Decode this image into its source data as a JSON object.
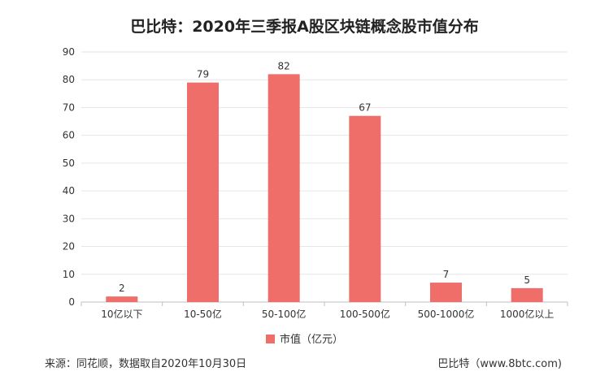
{
  "title": "巴比特：2020年三季报A股区块链概念股市值分布",
  "legend_label": "市值（亿元）",
  "footer": {
    "source": "来源：同花顺，数据取自2020年10月30日",
    "brand": "巴比特（www.8btc.com)"
  },
  "colors": {
    "bar": "#ef6e69",
    "grid": "#e6e6e6",
    "axis": "#bfbfbf"
  },
  "chart_data": {
    "type": "bar",
    "categories": [
      "10亿以下",
      "10-50亿",
      "50-100亿",
      "100-500亿",
      "500-1000亿",
      "1000亿以上"
    ],
    "series": [
      {
        "name": "市值（亿元）",
        "values": [
          2,
          79,
          82,
          67,
          7,
          5
        ]
      }
    ],
    "ylim": [
      0,
      90
    ],
    "yticks": [
      0,
      10,
      20,
      30,
      40,
      50,
      60,
      70,
      80,
      90
    ],
    "grid": true,
    "legend_position": "bottom",
    "data_labels": true
  }
}
